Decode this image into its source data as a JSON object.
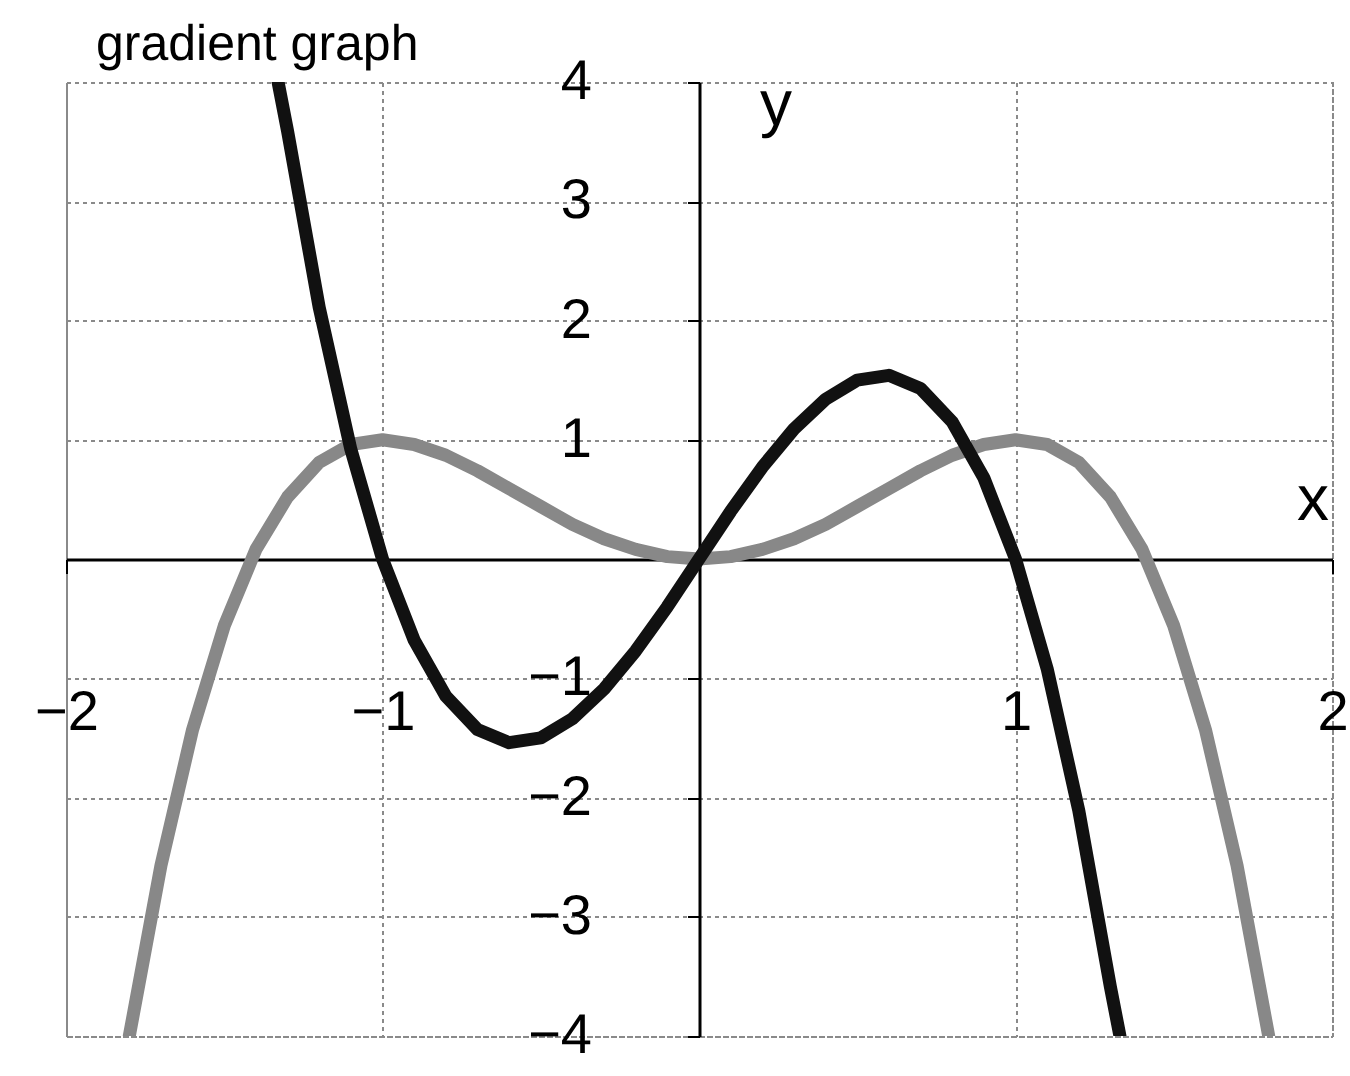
{
  "chart_data": {
    "type": "line",
    "title": "gradient graph",
    "xlabel": "x",
    "ylabel": "y",
    "xlim": [
      -2,
      2
    ],
    "ylim": [
      -4,
      4
    ],
    "xticks": [
      -2,
      -1,
      1,
      2
    ],
    "yticks": [
      -4,
      -3,
      -2,
      -1,
      1,
      2,
      3,
      4
    ],
    "grid": true,
    "series": [
      {
        "color": "#888888",
        "x": [
          -1.8,
          -1.7,
          -1.6,
          -1.5,
          -1.4,
          -1.3,
          -1.2,
          -1.1,
          -1.0,
          -0.9,
          -0.8,
          -0.7,
          -0.6,
          -0.5,
          -0.4,
          -0.3,
          -0.2,
          -0.1,
          0,
          0.1,
          0.2,
          0.3,
          0.4,
          0.5,
          0.6,
          0.7,
          0.8,
          0.9,
          1.0,
          1.1,
          1.2,
          1.3,
          1.4,
          1.5,
          1.6,
          1.7,
          1.8
        ],
        "values": [
          -4.0,
          -2.57,
          -1.43,
          -0.56,
          0.08,
          0.52,
          0.81,
          0.96,
          1.0,
          0.96,
          0.87,
          0.74,
          0.59,
          0.44,
          0.29,
          0.17,
          0.08,
          0.02,
          0,
          0.02,
          0.08,
          0.17,
          0.29,
          0.44,
          0.59,
          0.74,
          0.87,
          0.96,
          1.0,
          0.96,
          0.81,
          0.52,
          0.08,
          -0.56,
          -1.43,
          -2.57,
          -4.0
        ]
      },
      {
        "color": "#111111",
        "x": [
          -1.33,
          -1.3,
          -1.2,
          -1.1,
          -1.0,
          -0.9,
          -0.8,
          -0.7,
          -0.6,
          -0.5,
          -0.4,
          -0.3,
          -0.2,
          -0.1,
          0,
          0.1,
          0.2,
          0.3,
          0.4,
          0.5,
          0.6,
          0.7,
          0.8,
          0.9,
          1.0,
          1.1,
          1.2,
          1.3,
          1.33
        ],
        "values": [
          4.0,
          3.59,
          2.11,
          0.92,
          0,
          -0.68,
          -1.15,
          -1.43,
          -1.54,
          -1.5,
          -1.34,
          -1.09,
          -0.77,
          -0.4,
          0,
          0.4,
          0.77,
          1.09,
          1.34,
          1.5,
          1.54,
          1.43,
          1.15,
          0.68,
          0,
          -0.92,
          -2.11,
          -3.59,
          -4.0
        ]
      }
    ]
  }
}
